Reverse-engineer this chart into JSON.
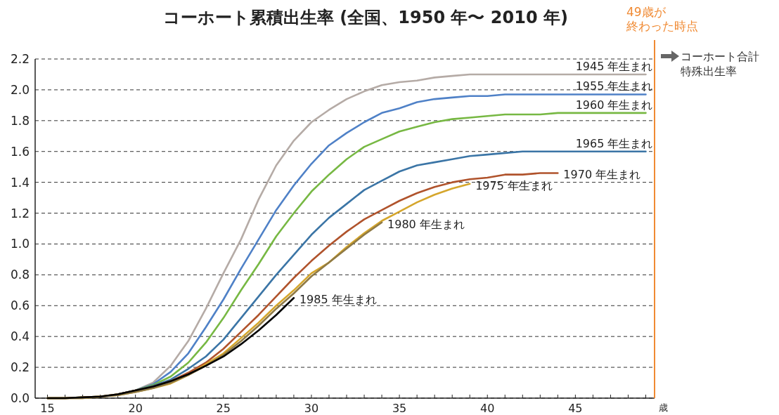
{
  "chart_data": {
    "type": "line",
    "title": "コーホート累積出生率 (全国、1950 年〜 2010 年)",
    "xlabel": "歳",
    "annotations": [
      "コーホート合計特殊出生率"
    ],
    "x": [
      15,
      16,
      17,
      18,
      19,
      20,
      21,
      22,
      23,
      24,
      25,
      26,
      27,
      28,
      29,
      30,
      31,
      32,
      33,
      34,
      35,
      36,
      37,
      38,
      39,
      40,
      41,
      42,
      43,
      44,
      45,
      46,
      47,
      48,
      49
    ],
    "series": [
      {
        "name": "1945 年生まれ",
        "color": "#b5aba6",
        "values": [
          0,
          0,
          0.005,
          0.01,
          0.025,
          0.05,
          0.1,
          0.21,
          0.37,
          0.58,
          0.81,
          1.03,
          1.29,
          1.51,
          1.67,
          1.79,
          1.87,
          1.94,
          1.99,
          2.03,
          2.05,
          2.06,
          2.08,
          2.09,
          2.1,
          2.1,
          2.1,
          2.1,
          2.1,
          2.1,
          2.1,
          2.1,
          2.1,
          2.1,
          2.1
        ]
      },
      {
        "name": "1955 年生まれ",
        "color": "#4f81c7",
        "values": [
          null,
          null,
          null,
          null,
          0.025,
          0.05,
          0.09,
          0.17,
          0.29,
          0.46,
          0.64,
          0.84,
          1.03,
          1.22,
          1.38,
          1.52,
          1.64,
          1.72,
          1.79,
          1.85,
          1.88,
          1.92,
          1.94,
          1.95,
          1.96,
          1.96,
          1.97,
          1.97,
          1.97,
          1.97,
          1.97,
          1.97,
          1.97,
          1.97,
          1.97
        ]
      },
      {
        "name": "1960 年生まれ",
        "color": "#77b843",
        "values": [
          0,
          0,
          0.005,
          0.01,
          0.025,
          0.05,
          0.085,
          0.14,
          0.23,
          0.36,
          0.52,
          0.7,
          0.87,
          1.05,
          1.2,
          1.34,
          1.45,
          1.55,
          1.63,
          1.68,
          1.73,
          1.76,
          1.79,
          1.81,
          1.82,
          1.83,
          1.84,
          1.84,
          1.84,
          1.85,
          1.85,
          1.85,
          1.85,
          1.85,
          1.85
        ]
      },
      {
        "name": "1965 年生まれ",
        "color": "#3b75a6",
        "values": [
          null,
          null,
          null,
          null,
          0.025,
          0.05,
          0.08,
          0.12,
          0.19,
          0.27,
          0.38,
          0.52,
          0.66,
          0.8,
          0.93,
          1.06,
          1.17,
          1.26,
          1.35,
          1.41,
          1.47,
          1.51,
          1.53,
          1.55,
          1.57,
          1.58,
          1.59,
          1.6,
          1.6,
          1.6,
          1.6,
          1.6,
          1.6,
          1.6,
          1.6
        ]
      },
      {
        "name": "1970 年生まれ",
        "color": "#b0532c",
        "values": [
          0,
          0,
          0.005,
          0.01,
          0.025,
          0.05,
          0.075,
          0.11,
          0.165,
          0.23,
          0.32,
          0.43,
          0.54,
          0.66,
          0.78,
          0.89,
          0.99,
          1.08,
          1.16,
          1.22,
          1.28,
          1.33,
          1.37,
          1.4,
          1.42,
          1.43,
          1.45,
          1.45,
          1.46,
          1.46,
          null,
          null,
          null,
          null,
          null
        ]
      },
      {
        "name": "1975 年生まれ",
        "color": "#d5a62c",
        "values": [
          0,
          0,
          0,
          0.01,
          0.02,
          0.04,
          0.065,
          0.095,
          0.15,
          0.22,
          0.29,
          0.39,
          0.49,
          0.6,
          0.7,
          0.81,
          0.88,
          0.98,
          1.07,
          1.15,
          1.21,
          1.27,
          1.32,
          1.36,
          1.39,
          null,
          null,
          null,
          null,
          null,
          null,
          null,
          null,
          null,
          null
        ]
      },
      {
        "name": "1980 年生まれ",
        "color": "#8f7a45",
        "values": [
          0,
          0,
          0,
          0.01,
          0.02,
          0.04,
          0.065,
          0.1,
          0.15,
          0.21,
          0.28,
          0.37,
          0.47,
          0.58,
          0.68,
          0.79,
          0.88,
          0.97,
          1.06,
          1.14,
          null,
          null,
          null,
          null,
          null,
          null,
          null,
          null,
          null,
          null,
          null,
          null,
          null,
          null,
          null
        ]
      },
      {
        "name": "1985 年生まれ",
        "color": "#000000",
        "values": [
          0,
          0,
          0.005,
          0.01,
          0.025,
          0.05,
          0.075,
          0.11,
          0.155,
          0.21,
          0.27,
          0.35,
          0.44,
          0.54,
          0.65,
          null,
          null,
          null,
          null,
          null,
          null,
          null,
          null,
          null,
          null,
          null,
          null,
          null,
          null,
          null,
          null,
          null,
          null,
          null,
          null
        ]
      }
    ],
    "xlim": [
      14.3,
      49.5
    ],
    "xticks": [
      {
        "value": 15,
        "label": "15"
      },
      {
        "value": 16,
        "label": null
      },
      {
        "value": 17,
        "label": null
      },
      {
        "value": 18,
        "label": null
      },
      {
        "value": 19,
        "label": null
      },
      {
        "value": 20,
        "label": "20"
      },
      {
        "value": 21,
        "label": null
      },
      {
        "value": 22,
        "label": null
      },
      {
        "value": 23,
        "label": null
      },
      {
        "value": 24,
        "label": null
      },
      {
        "value": 25,
        "label": "25"
      },
      {
        "value": 26,
        "label": null
      },
      {
        "value": 27,
        "label": null
      },
      {
        "value": 28,
        "label": null
      },
      {
        "value": 29,
        "label": null
      },
      {
        "value": 30,
        "label": "30"
      },
      {
        "value": 31,
        "label": null
      },
      {
        "value": 32,
        "label": null
      },
      {
        "value": 33,
        "label": null
      },
      {
        "value": 34,
        "label": null
      },
      {
        "value": 35,
        "label": "35"
      },
      {
        "value": 36,
        "label": null
      },
      {
        "value": 37,
        "label": null
      },
      {
        "value": 38,
        "label": null
      },
      {
        "value": 39,
        "label": null
      },
      {
        "value": 40,
        "label": "40"
      },
      {
        "value": 41,
        "label": null
      },
      {
        "value": 42,
        "label": null
      },
      {
        "value": 43,
        "label": null
      },
      {
        "value": 44,
        "label": null
      },
      {
        "value": 45,
        "label": "45"
      },
      {
        "value": 46,
        "label": null
      },
      {
        "value": 47,
        "label": null
      },
      {
        "value": 48,
        "label": null
      },
      {
        "value": 49,
        "label": null
      }
    ],
    "ylim": [
      0,
      2.2
    ],
    "yticks": [
      {
        "value": 0,
        "label": "0.0"
      },
      {
        "value": 0.2,
        "label": "0.2"
      },
      {
        "value": 0.4,
        "label": "0.4"
      },
      {
        "value": 0.6,
        "label": "0.6"
      },
      {
        "value": 0.8,
        "label": "0.8"
      },
      {
        "value": 1,
        "label": "1.0"
      },
      {
        "value": 1.2,
        "label": "1.2"
      },
      {
        "value": 1.4,
        "label": "1.4"
      },
      {
        "value": 1.6,
        "label": "1.6"
      },
      {
        "value": 1.8,
        "label": "1.8"
      },
      {
        "value": 2,
        "label": "2.0"
      },
      {
        "value": 2.2,
        "label": "2.2"
      }
    ],
    "ref_lines": [
      {
        "axis": "x",
        "value": 49.5,
        "label": "49歳が終わった時点",
        "color": "#f08a33"
      }
    ],
    "grid": "y",
    "line_style": "solid"
  }
}
